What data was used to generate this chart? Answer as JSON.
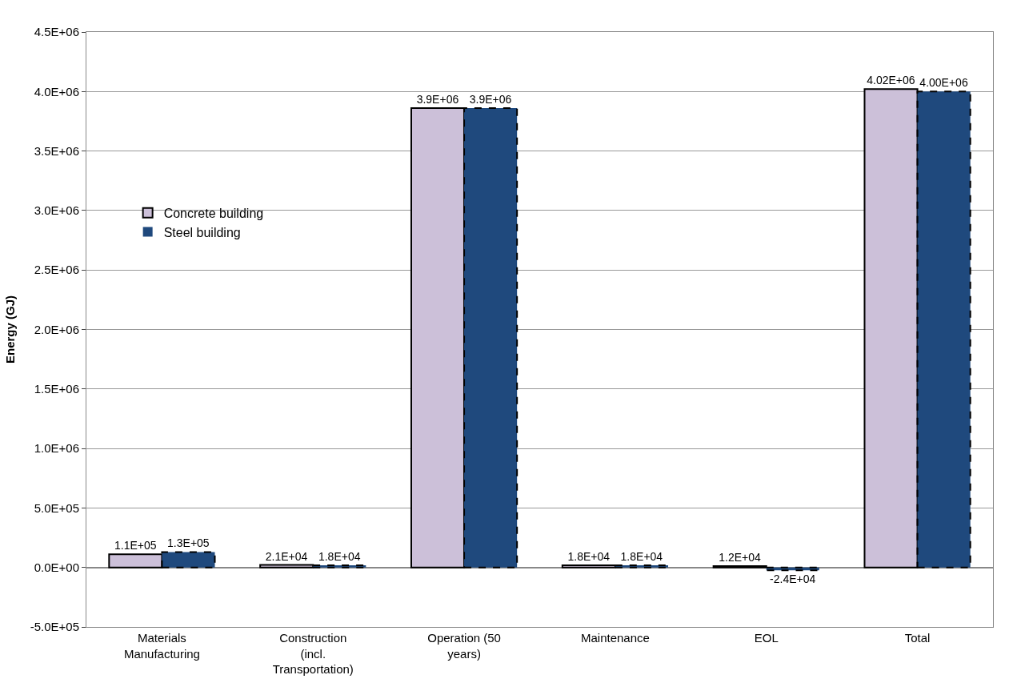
{
  "chart_data": {
    "type": "bar",
    "ylabel": "Energy (GJ)",
    "categories": [
      "Materials Manufacturing",
      "Construction (incl. Transportation)",
      "Operation (50 years)",
      "Maintenance",
      "EOL",
      "Total"
    ],
    "series": [
      {
        "name": "Concrete building",
        "color": "#ccc0d9",
        "values": [
          110000,
          21000,
          3860000,
          18000,
          12000,
          4020000
        ],
        "value_labels": [
          "1.1E+05",
          "2.1E+04",
          "3.9E+06",
          "1.8E+04",
          "1.2E+04",
          "4.02E+06"
        ]
      },
      {
        "name": "Steel building",
        "color": "#1f497d",
        "line_style": "dashed",
        "values": [
          130000,
          18000,
          3860000,
          18000,
          -24000,
          4000000
        ],
        "value_labels": [
          "1.3E+05",
          "1.8E+04",
          "3.9E+06",
          "1.8E+04",
          "-2.4E+04",
          "4.00E+06"
        ]
      }
    ],
    "ylim": [
      -500000,
      4500000
    ],
    "yticks": [
      {
        "value": -500000,
        "label": "-5.0E+05"
      },
      {
        "value": 0,
        "label": "0.0E+00"
      },
      {
        "value": 500000,
        "label": "5.0E+05"
      },
      {
        "value": 1000000,
        "label": "1.0E+06"
      },
      {
        "value": 1500000,
        "label": "1.5E+06"
      },
      {
        "value": 2000000,
        "label": "2.0E+06"
      },
      {
        "value": 2500000,
        "label": "2.5E+06"
      },
      {
        "value": 3000000,
        "label": "3.0E+06"
      },
      {
        "value": 3500000,
        "label": "3.5E+06"
      },
      {
        "value": 4000000,
        "label": "4.0E+06"
      },
      {
        "value": 4500000,
        "label": "4.5E+06"
      }
    ],
    "grid": "y",
    "legend": "left"
  }
}
